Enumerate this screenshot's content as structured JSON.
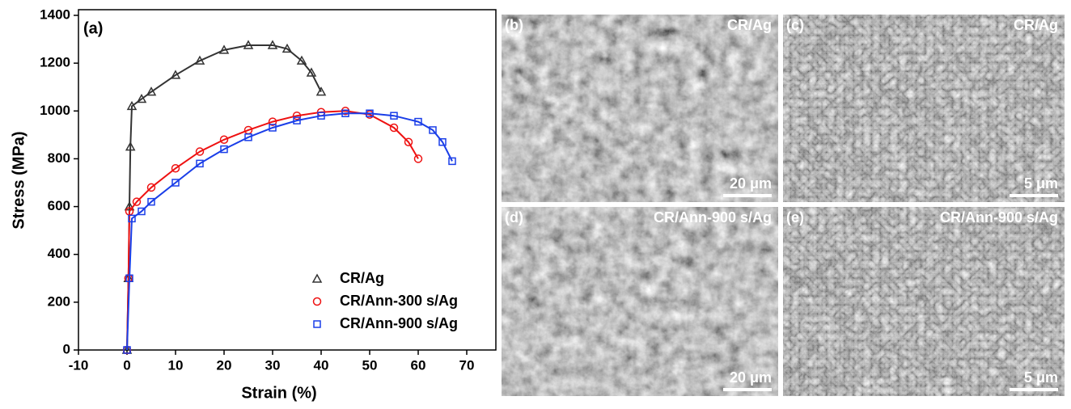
{
  "chart_data": {
    "type": "scatter",
    "panel_label": "(a)",
    "x_label": "Strain (%)",
    "y_label": "Stress (MPa)",
    "xlim": [
      -10,
      75
    ],
    "ylim": [
      0,
      1400
    ],
    "xticks": [
      -10,
      0,
      10,
      20,
      30,
      40,
      50,
      60,
      70
    ],
    "yticks": [
      0,
      200,
      400,
      600,
      800,
      1000,
      1200,
      1400
    ],
    "legend": "lower right",
    "series": [
      {
        "name": "CR/Ag",
        "color": "#333333",
        "marker": "triangle",
        "x": [
          0,
          0.3,
          0.5,
          0.7,
          1,
          3,
          5,
          10,
          15,
          20,
          25,
          30,
          33,
          36,
          38,
          40
        ],
        "values": [
          0,
          300,
          600,
          850,
          1020,
          1050,
          1080,
          1150,
          1210,
          1255,
          1275,
          1275,
          1260,
          1210,
          1160,
          1080
        ]
      },
      {
        "name": "CR/Ann-300 s/Ag",
        "color": "#ee1111",
        "marker": "circle",
        "x": [
          0,
          0.3,
          0.5,
          2,
          5,
          10,
          15,
          20,
          25,
          30,
          35,
          40,
          45,
          50,
          55,
          58,
          60
        ],
        "values": [
          0,
          300,
          580,
          620,
          680,
          760,
          830,
          880,
          920,
          955,
          980,
          995,
          1000,
          985,
          930,
          870,
          800
        ]
      },
      {
        "name": "CR/Ann-900 s/Ag",
        "color": "#1a3ee8",
        "marker": "square",
        "x": [
          0,
          0.5,
          1,
          3,
          5,
          10,
          15,
          20,
          25,
          30,
          35,
          40,
          45,
          50,
          55,
          60,
          63,
          65,
          67
        ],
        "values": [
          0,
          300,
          550,
          580,
          620,
          700,
          780,
          840,
          890,
          930,
          960,
          980,
          990,
          990,
          980,
          955,
          920,
          870,
          790
        ]
      }
    ]
  },
  "images": [
    {
      "label": "(b)",
      "sample": "CR/Ag",
      "scale": "20 μm"
    },
    {
      "label": "(c)",
      "sample": "CR/Ag",
      "scale": "5 μm"
    },
    {
      "label": "(d)",
      "sample": "CR/Ann-900 s/Ag",
      "scale": "20 μm"
    },
    {
      "label": "(e)",
      "sample": "CR/Ann-900 s/Ag",
      "scale": "5 μm"
    }
  ]
}
